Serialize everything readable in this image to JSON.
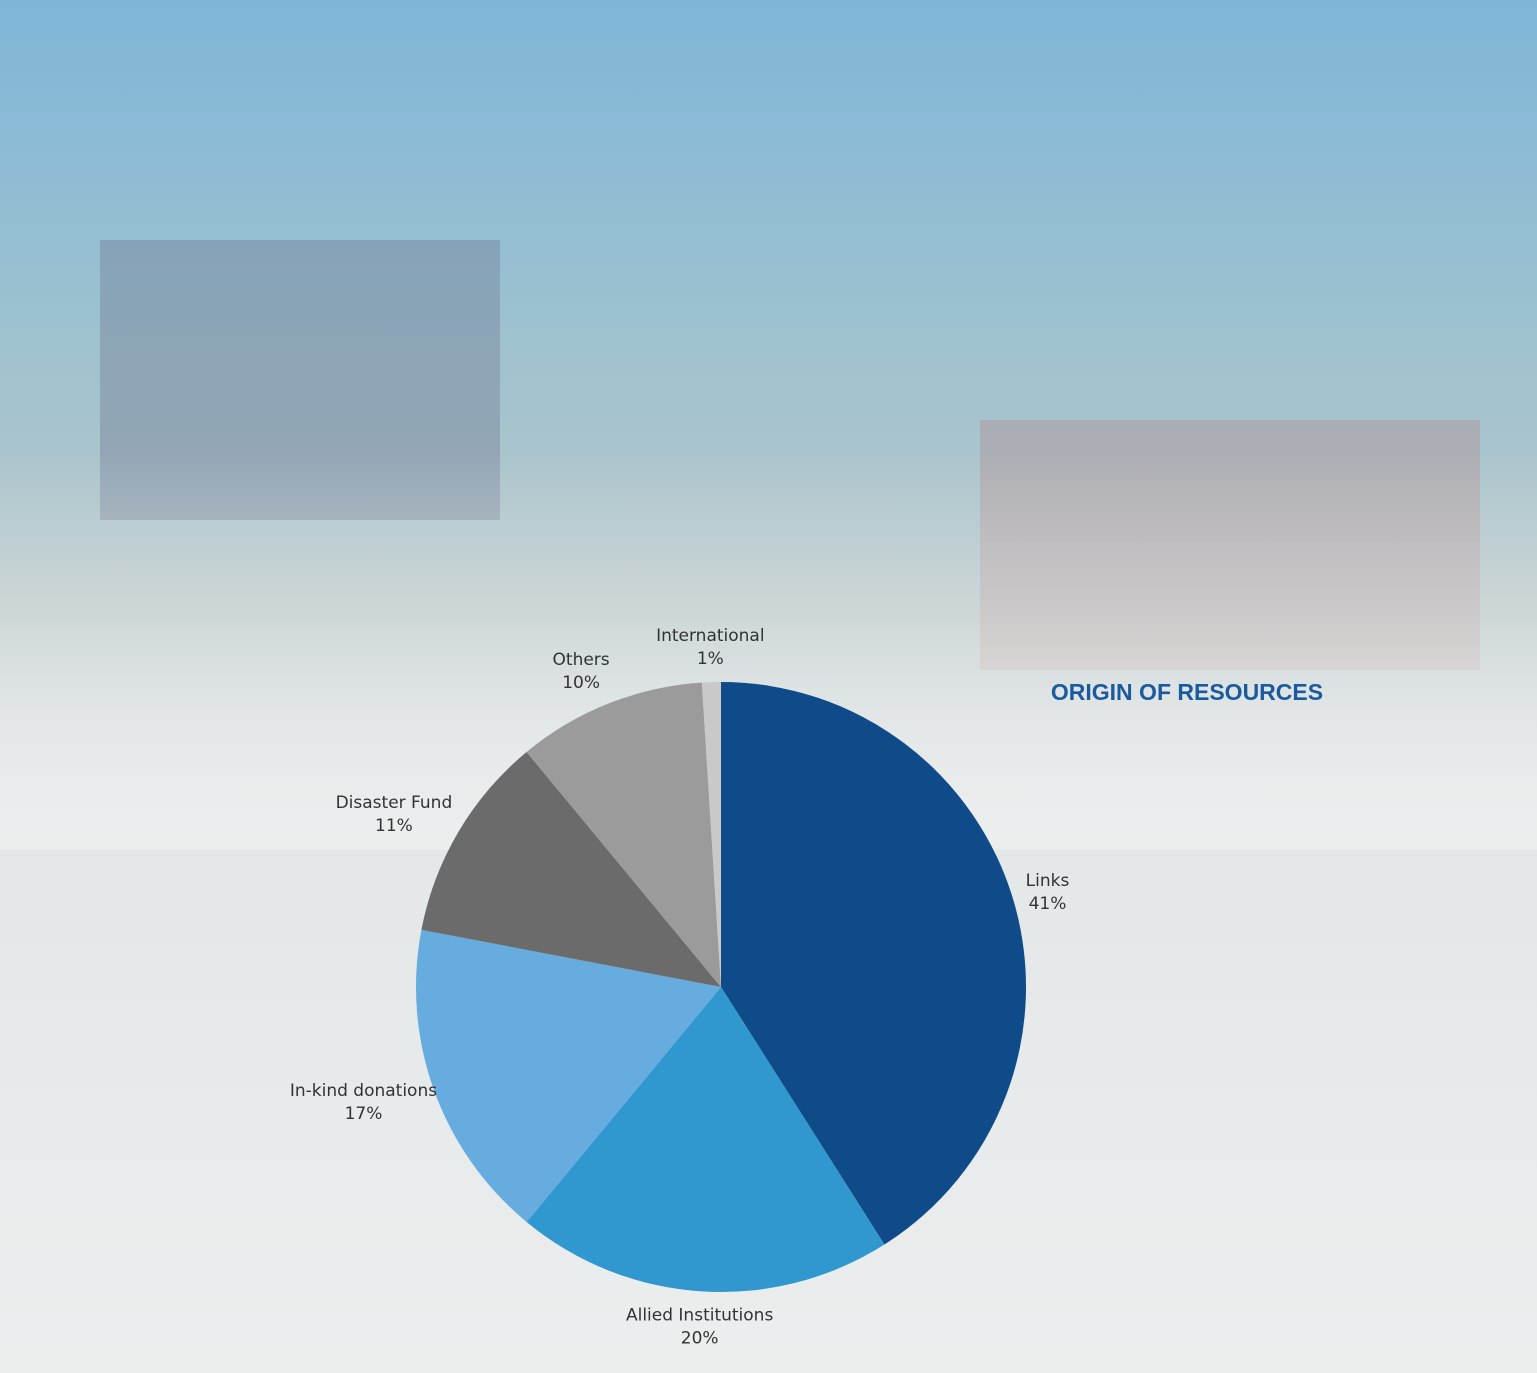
{
  "chart_data": {
    "type": "pie",
    "title": "ORIGIN OF RESOURCES",
    "categories": [
      "Links",
      "Allied Institutions",
      "In-kind donations",
      "Disaster Fund",
      "Others",
      "International"
    ],
    "values": [
      41,
      20,
      17,
      11,
      10,
      1
    ],
    "value_labels": [
      "41%",
      "20%",
      "17%",
      "11%",
      "10%",
      "1%"
    ],
    "colors": [
      "#0f4a89",
      "#3098cf",
      "#67acdf",
      "#6b6b6b",
      "#9b9b9b",
      "#c9c9c9"
    ]
  }
}
